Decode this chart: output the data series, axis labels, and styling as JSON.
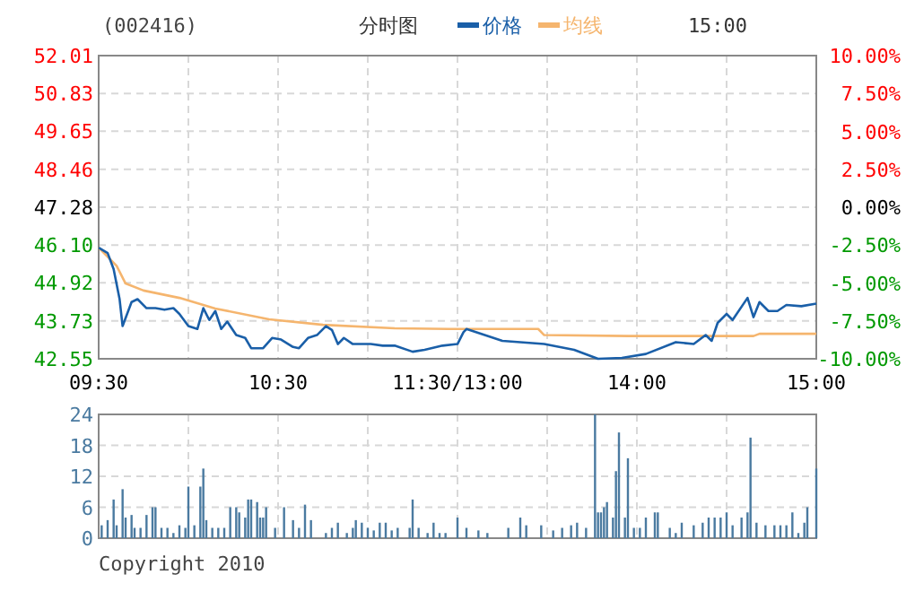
{
  "chart_data": [
    {
      "type": "line",
      "title": "分时图",
      "subtitle": "(002416)",
      "annotations": [
        "15:00"
      ],
      "legend": "top",
      "grid": true,
      "categories": [
        "09:30",
        null,
        null,
        null,
        null,
        null,
        null,
        null,
        null,
        null,
        null,
        null,
        null,
        null,
        null,
        null,
        null,
        null,
        null,
        null,
        null,
        null,
        null,
        null,
        null,
        null,
        null,
        null,
        null,
        null,
        null,
        null,
        null,
        null,
        null,
        null,
        null,
        null,
        null,
        null,
        null,
        null,
        null,
        null,
        null,
        null,
        null,
        null,
        null,
        null,
        null,
        null,
        null,
        null,
        null,
        null,
        null,
        null,
        null,
        null,
        "10:30",
        null,
        null,
        null,
        null,
        null,
        null,
        null,
        null,
        null,
        null,
        null,
        null,
        null,
        null,
        null,
        null,
        null,
        null,
        null,
        null,
        null,
        null,
        null,
        null,
        null,
        null,
        null,
        null,
        null,
        null,
        null,
        null,
        null,
        null,
        null,
        null,
        null,
        null,
        null,
        null,
        null,
        null,
        null,
        null,
        null,
        null,
        null,
        null,
        null,
        null,
        null,
        null,
        null,
        null,
        null,
        null,
        null,
        null,
        null,
        "11:30/13:00",
        null,
        null,
        null,
        null,
        null,
        null,
        null,
        null,
        null,
        null,
        null,
        null,
        null,
        null,
        null,
        null,
        null,
        null,
        null,
        null,
        null,
        null,
        null,
        null,
        null,
        null,
        null,
        null,
        null,
        null,
        null,
        null,
        null,
        null,
        null,
        null,
        null,
        null,
        null,
        null,
        null,
        null,
        null,
        null,
        null,
        null,
        null,
        null,
        null,
        null,
        null,
        null,
        null,
        null,
        null,
        null,
        null,
        null,
        null,
        "14:00",
        null,
        null,
        null,
        null,
        null,
        null,
        null,
        null,
        null,
        null,
        null,
        null,
        null,
        null,
        null,
        null,
        null,
        null,
        null,
        null,
        null,
        null,
        null,
        null,
        null,
        null,
        null,
        null,
        null,
        null,
        null,
        null,
        null,
        null,
        null,
        null,
        null,
        null,
        null,
        null,
        null,
        null,
        null,
        null,
        null,
        null,
        null,
        null,
        null,
        null,
        null,
        null,
        null,
        null,
        null,
        null,
        null,
        null,
        null,
        "15:00"
      ],
      "ylim": [
        42.55,
        52.01
      ],
      "yticks": [
        42.55,
        43.73,
        44.92,
        {
          "value": 46.1,
          "label": "46.10"
        },
        47.28,
        48.46,
        49.65,
        50.83,
        52.01
      ],
      "y2lim": [
        -10,
        10
      ],
      "y2ticks": [
        {
          "value": -10,
          "label": "-10.00%"
        },
        {
          "value": -7.5,
          "label": "-7.50%"
        },
        {
          "value": -5,
          "label": "-5.00%"
        },
        {
          "value": -2.5,
          "label": "-2.50%"
        },
        {
          "value": 0,
          "label": "0.00%"
        },
        {
          "value": 2.5,
          "label": "2.50%"
        },
        {
          "value": 5,
          "label": "5.00%"
        },
        {
          "value": 7.5,
          "label": "7.50%"
        },
        {
          "value": 10,
          "label": "10.00%"
        }
      ],
      "series": [
        {
          "name": "均线",
          "color": "#f5b56e",
          "values": [
            46.02,
            null,
            null,
            null,
            null,
            null,
            45.45,
            null,
            null,
            44.9,
            null,
            null,
            null,
            null,
            null,
            44.68,
            null,
            null,
            null,
            null,
            null,
            null,
            null,
            null,
            null,
            null,
            null,
            44.45,
            null,
            null,
            null,
            null,
            null,
            null,
            null,
            null,
            null,
            null,
            null,
            44.12,
            null,
            null,
            null,
            null,
            null,
            null,
            null,
            null,
            null,
            null,
            null,
            null,
            null,
            null,
            null,
            null,
            null,
            43.78,
            null,
            null,
            null,
            null,
            null,
            null,
            null,
            null,
            null,
            null,
            null,
            null,
            null,
            null,
            null,
            null,
            null,
            43.61,
            null,
            null,
            null,
            null,
            null,
            null,
            null,
            null,
            null,
            null,
            null,
            null,
            null,
            null,
            null,
            null,
            null,
            null,
            null,
            null,
            null,
            null,
            null,
            43.5,
            null,
            null,
            null,
            null,
            null,
            null,
            null,
            null,
            null,
            null,
            null,
            null,
            null,
            null,
            null,
            null,
            null,
            43.48,
            null,
            null,
            null,
            null,
            null,
            null,
            null,
            null,
            null,
            null,
            null,
            null,
            null,
            null,
            null,
            null,
            null,
            null,
            null,
            null,
            null,
            null,
            null,
            null,
            null,
            null,
            null,
            null,
            null,
            43.48,
            null,
            43.29,
            null,
            null,
            null,
            null,
            null,
            null,
            null,
            null,
            null,
            null,
            null,
            null,
            null,
            null,
            null,
            null,
            null,
            null,
            null,
            null,
            null,
            null,
            null,
            null,
            null,
            null,
            null,
            43.26,
            null,
            null,
            null,
            null,
            null,
            null,
            null,
            null,
            null,
            null,
            null,
            null,
            null,
            null,
            null,
            null,
            null,
            null,
            null,
            null,
            null,
            null,
            null,
            null,
            null,
            null,
            null,
            null,
            null,
            null,
            null,
            null,
            null,
            null,
            null,
            null,
            null,
            null,
            null,
            null,
            null,
            43.26,
            null,
            43.33,
            null,
            null,
            null,
            null,
            null,
            null,
            null,
            null,
            null,
            null,
            null,
            null,
            null,
            null,
            null,
            null,
            null,
            null,
            43.33
          ]
        },
        {
          "name": "价格",
          "color": "#1a5fa8",
          "values": [
            46.02,
            null,
            null,
            45.85,
            null,
            45.35,
            null,
            44.41,
            43.57,
            null,
            null,
            44.32,
            null,
            44.41,
            null,
            null,
            44.13,
            null,
            null,
            44.13,
            null,
            null,
            44.08,
            null,
            null,
            44.13,
            null,
            43.95,
            null,
            null,
            43.57,
            null,
            null,
            43.48,
            null,
            44.13,
            null,
            43.76,
            null,
            44.04,
            null,
            43.48,
            null,
            43.71,
            null,
            null,
            43.29,
            null,
            null,
            43.2,
            null,
            42.88,
            null,
            null,
            null,
            42.88,
            null,
            null,
            43.2,
            null,
            null,
            43.15,
            null,
            null,
            null,
            42.92,
            null,
            42.88,
            null,
            null,
            43.2,
            null,
            null,
            43.29,
            null,
            null,
            43.57,
            null,
            43.45,
            null,
            43.01,
            null,
            43.2,
            null,
            null,
            43.01,
            null,
            null,
            null,
            null,
            null,
            43.01,
            null,
            null,
            null,
            42.96,
            null,
            null,
            null,
            42.96,
            null,
            null,
            null,
            null,
            null,
            42.77,
            null,
            null,
            null,
            42.83,
            null,
            null,
            null,
            null,
            null,
            42.96,
            null,
            null,
            null,
            null,
            43.01,
            null,
            43.38,
            43.48,
            null,
            null,
            null,
            null,
            null,
            null,
            null,
            null,
            null,
            null,
            null,
            43.11,
            null,
            null,
            null,
            null,
            null,
            null,
            null,
            null,
            null,
            null,
            null,
            null,
            null,
            43.01,
            null,
            null,
            null,
            null,
            null,
            null,
            null,
            null,
            null,
            42.83,
            null,
            null,
            null,
            null,
            null,
            null,
            null,
            42.55,
            null,
            null,
            null,
            null,
            null,
            null,
            null,
            42.58,
            null,
            null,
            null,
            null,
            null,
            null,
            null,
            42.7,
            null,
            null,
            null,
            null,
            null,
            null,
            null,
            null,
            null,
            43.07,
            null,
            null,
            null,
            null,
            null,
            43.01,
            null,
            null,
            null,
            43.29,
            null,
            43.11,
            null,
            43.67,
            null,
            null,
            43.95,
            null,
            43.76,
            null,
            null,
            null,
            null,
            44.45,
            null,
            43.85,
            null,
            44.32,
            null,
            null,
            44.04,
            null,
            null,
            44.04,
            null,
            null,
            44.23,
            null,
            null,
            null,
            null,
            44.19,
            null,
            null,
            null,
            null,
            44.27
          ]
        }
      ]
    },
    {
      "type": "bar",
      "annotations": [
        "Copyright 2010"
      ],
      "grid": true,
      "tick_labels": "y",
      "color": "#4a7aa0",
      "categories": [
        null,
        null,
        null,
        null,
        null,
        null,
        null,
        null,
        null,
        null,
        null,
        null,
        null,
        null,
        null,
        null,
        null,
        null,
        null,
        null,
        null,
        null,
        null,
        null,
        null,
        null,
        null,
        null,
        null,
        null,
        null,
        null,
        null,
        null,
        null,
        null,
        null,
        null,
        null,
        null,
        null,
        null,
        null,
        null,
        null,
        null,
        null,
        null,
        null,
        null,
        null,
        null,
        null,
        null,
        null,
        null,
        null,
        null,
        null,
        null,
        null,
        null,
        null,
        null,
        null,
        null,
        null,
        null,
        null,
        null,
        null,
        null,
        null,
        null,
        null,
        null,
        null,
        null,
        null,
        null,
        null,
        null,
        null,
        null,
        null,
        null,
        null,
        null,
        null,
        null,
        null,
        null,
        null,
        null,
        null,
        null,
        null,
        null,
        null,
        null,
        null,
        null,
        null,
        null,
        null,
        null,
        null,
        null,
        null,
        null,
        null,
        null,
        null,
        null,
        null,
        null,
        null,
        null,
        null,
        null,
        null,
        null,
        null,
        null,
        null,
        null,
        null,
        null,
        null,
        null,
        null,
        null,
        null,
        null,
        null,
        null,
        null,
        null,
        null,
        null,
        null,
        null,
        null,
        null,
        null,
        null,
        null,
        null,
        null,
        null,
        null,
        null,
        null,
        null,
        null,
        null,
        null,
        null,
        null,
        null,
        null,
        null,
        null,
        null,
        null,
        null,
        null,
        null,
        null,
        null,
        null,
        null,
        null,
        null,
        null,
        null,
        null,
        null,
        null,
        null,
        null,
        null,
        null,
        null,
        null,
        null,
        null,
        null,
        null,
        null,
        null,
        null,
        null,
        null,
        null,
        null,
        null,
        null,
        null,
        null,
        null,
        null,
        null,
        null,
        null,
        null,
        null,
        null,
        null,
        null,
        null,
        null,
        null,
        null,
        null,
        null,
        null,
        null,
        null,
        null,
        null,
        null,
        null,
        null,
        null,
        null,
        null,
        null,
        null,
        null,
        null,
        null,
        null,
        null,
        null,
        null,
        null,
        null,
        null,
        null,
        null
      ],
      "ylim": [
        0,
        24
      ],
      "yticks": [
        0,
        6,
        12,
        18,
        24
      ],
      "values": [
        null,
        2.5,
        null,
        3.5,
        null,
        7.5,
        2.5,
        null,
        9.5,
        4,
        null,
        4.5,
        2,
        null,
        2,
        null,
        4.5,
        null,
        6,
        6,
        null,
        2,
        null,
        2,
        null,
        1,
        null,
        2.5,
        null,
        2,
        10,
        null,
        2.5,
        null,
        10,
        13.5,
        3.5,
        null,
        2,
        null,
        2,
        null,
        2,
        null,
        6,
        null,
        6,
        5,
        null,
        4,
        7.5,
        7.5,
        null,
        7,
        4,
        4,
        6,
        null,
        null,
        2,
        null,
        null,
        6,
        null,
        null,
        3.5,
        null,
        2,
        null,
        6.5,
        null,
        3.5,
        null,
        null,
        null,
        null,
        1,
        null,
        2,
        null,
        3,
        null,
        null,
        1,
        null,
        2,
        3.5,
        null,
        3,
        null,
        2,
        null,
        1.5,
        null,
        3,
        null,
        3,
        null,
        1.5,
        null,
        2,
        null,
        null,
        null,
        2,
        7.5,
        null,
        2,
        null,
        null,
        1,
        null,
        3,
        null,
        1,
        null,
        1,
        null,
        null,
        null,
        4,
        null,
        null,
        2,
        null,
        null,
        null,
        1.5,
        null,
        null,
        1,
        null,
        null,
        null,
        null,
        null,
        null,
        2,
        null,
        null,
        null,
        4,
        null,
        2.5,
        null,
        null,
        null,
        null,
        2.5,
        null,
        null,
        null,
        1.5,
        null,
        null,
        2,
        null,
        null,
        2.5,
        null,
        3,
        null,
        null,
        2,
        null,
        null,
        24,
        5,
        5,
        6,
        7,
        null,
        4,
        13,
        20.5,
        null,
        4,
        15.5,
        null,
        2,
        null,
        2,
        null,
        4,
        null,
        null,
        5,
        5,
        null,
        null,
        null,
        2,
        null,
        1,
        null,
        3,
        null,
        null,
        null,
        2.5,
        null,
        null,
        3,
        null,
        4,
        null,
        4,
        null,
        4,
        null,
        5,
        null,
        2.5,
        null,
        null,
        4,
        null,
        5,
        19.5,
        null,
        3,
        null,
        null,
        2.5,
        null,
        null,
        2.5,
        null,
        2.5,
        null,
        2.5,
        null,
        5,
        null,
        1,
        null,
        3,
        6,
        null,
        null,
        13.5
      ]
    }
  ]
}
